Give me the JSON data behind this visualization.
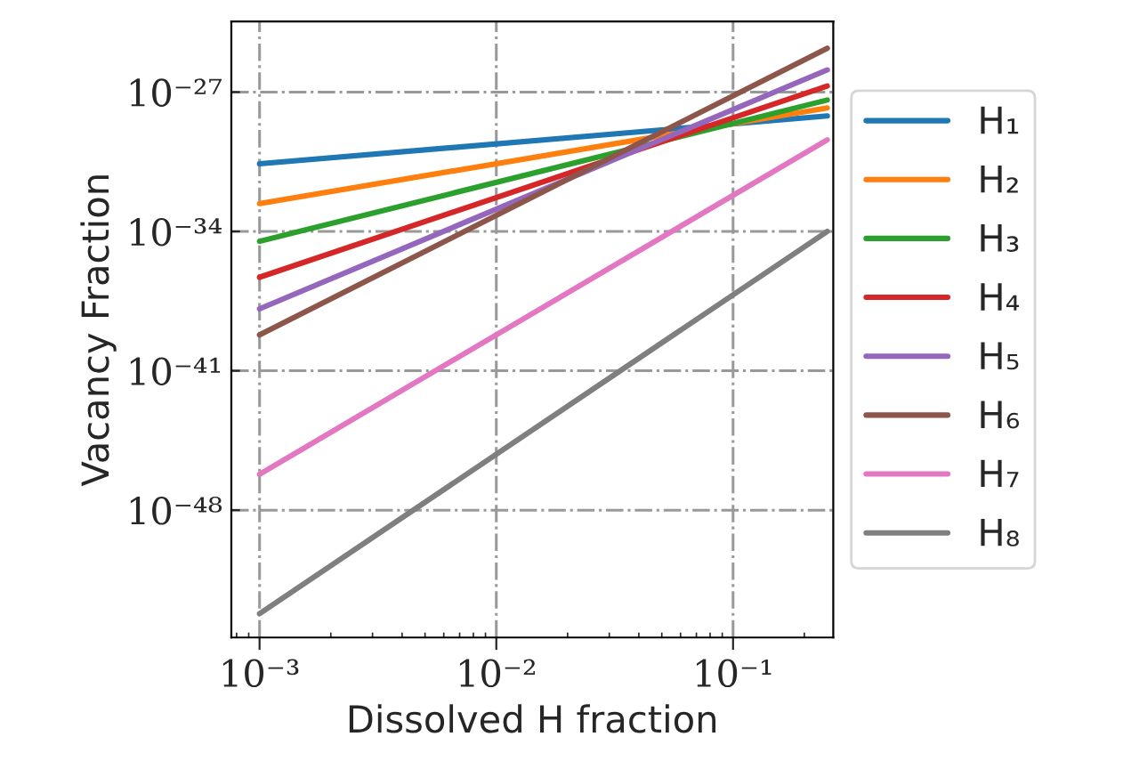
{
  "chart_data": {
    "type": "line",
    "xlabel": "Dissolved H fraction",
    "ylabel": "Vacancy Fraction",
    "x": [
      0.001,
      0.25
    ],
    "series": [
      {
        "name": "H₁",
        "color": "#1f77b4",
        "values": [
          2.5e-31,
          6.3e-29
        ]
      },
      {
        "name": "H₂",
        "color": "#ff7f0e",
        "values": [
          2.5e-33,
          1.6e-28
        ]
      },
      {
        "name": "H₃",
        "color": "#2ca02c",
        "values": [
          3.2e-35,
          4e-28
        ]
      },
      {
        "name": "H₄",
        "color": "#d62728",
        "values": [
          5e-37,
          2e-27
        ]
      },
      {
        "name": "H₅",
        "color": "#9467bd",
        "values": [
          1.3e-38,
          1.3e-26
        ]
      },
      {
        "name": "H₆",
        "color": "#8c564b",
        "values": [
          6.3e-40,
          1.6e-25
        ]
      },
      {
        "name": "H₇",
        "color": "#e377c2",
        "values": [
          6.3e-47,
          4e-30
        ]
      },
      {
        "name": "H₈",
        "color": "#7f7f7f",
        "values": [
          6.3e-54,
          1e-34
        ]
      }
    ],
    "log": "xy",
    "xlim": [
      0.00076,
      0.265
    ],
    "ylim": [
      4e-55,
      3.5e-24
    ],
    "xticks": [
      {
        "value": 0.001,
        "label": "10⁻³"
      },
      {
        "value": 0.01,
        "label": "10⁻²"
      },
      {
        "value": 0.1,
        "label": "10⁻¹"
      }
    ],
    "yticks": [
      {
        "value": 1e-48,
        "label": "10⁻⁴⁸"
      },
      {
        "value": 1e-41,
        "label": "10⁻⁴¹"
      },
      {
        "value": 1e-34,
        "label": "10⁻³⁴"
      },
      {
        "value": 1e-27,
        "label": "10⁻²⁷"
      }
    ],
    "grid": true,
    "legend": "right",
    "marker": "none",
    "line_style": "solid"
  }
}
